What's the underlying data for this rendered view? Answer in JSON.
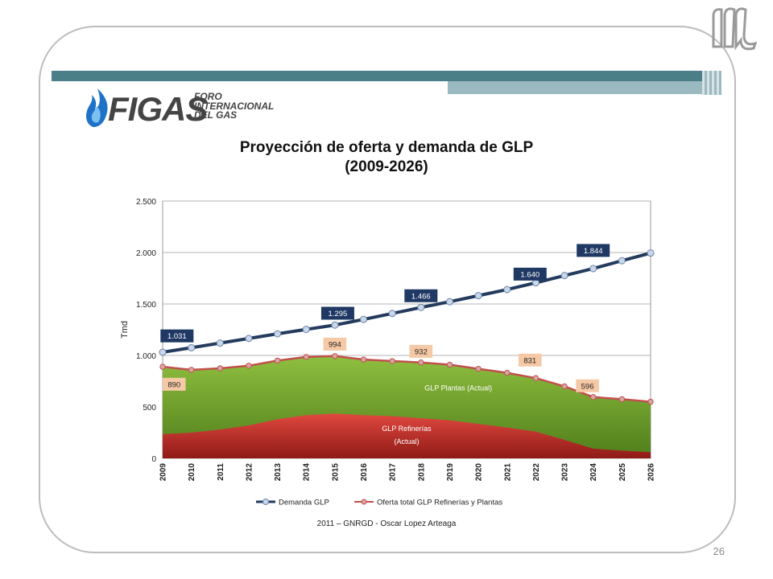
{
  "slide": {
    "footer": "2011 – GNRGD - Oscar Lopez Arteaga",
    "page_number": "26",
    "accent_dark": "#4a7f88",
    "accent_light": "#9ab9c0",
    "emblem_icon": "gothic-m-monogram-icon"
  },
  "logo": {
    "word": "FIGAS",
    "tagline_lines": [
      "FORO",
      "INTERNACIONAL",
      "DEL GAS"
    ],
    "icon": "blue-flame-icon"
  },
  "chart_data": {
    "type": "area",
    "title_lines": [
      "Proyección de oferta y demanda de GLP",
      "(2009-2026)"
    ],
    "xlabel": "",
    "ylabel": "Tmd",
    "ylim": [
      0,
      2500
    ],
    "yticks": [
      0,
      500,
      1000,
      1500,
      2000,
      2500
    ],
    "ytick_labels": [
      "0",
      "500",
      "1.000",
      "1.500",
      "2.000",
      "2.500"
    ],
    "grid": true,
    "x": [
      "2009",
      "2010",
      "2011",
      "2012",
      "2013",
      "2014",
      "2015",
      "2016",
      "2017",
      "2018",
      "2019",
      "2020",
      "2021",
      "2022",
      "2023",
      "2024",
      "2025",
      "2026"
    ],
    "series": [
      {
        "name": "Demanda GLP",
        "kind": "line",
        "color": "#243b5e",
        "values": [
          1031,
          1075,
          1120,
          1165,
          1210,
          1253,
          1295,
          1350,
          1408,
          1466,
          1522,
          1581,
          1640,
          1706,
          1776,
          1844,
          1920,
          1995
        ]
      },
      {
        "name": "Oferta total GLP Refinerías y Plantas",
        "kind": "line",
        "color": "#c0504d",
        "values": [
          890,
          860,
          875,
          900,
          950,
          985,
          994,
          960,
          945,
          932,
          910,
          870,
          831,
          780,
          700,
          596,
          575,
          550
        ]
      },
      {
        "name": "GLP Refinerías (Actual)",
        "kind": "area",
        "color": "#c0302a",
        "values": [
          235,
          250,
          280,
          320,
          380,
          420,
          435,
          420,
          410,
          390,
          370,
          335,
          300,
          260,
          180,
          95,
          75,
          60
        ]
      }
    ],
    "area_labels": [
      {
        "text": "GLP Plantas (Actual)",
        "x_index": 10.3,
        "y": 660
      },
      {
        "text": "GLP Refinerías",
        "x_index": 8.5,
        "y": 265
      },
      {
        "text": "(Actual)",
        "x_index": 8.5,
        "y": 140
      }
    ],
    "demand_labels": [
      {
        "text": "1.031",
        "x_index": 0.5,
        "y": 1190
      },
      {
        "text": "1.295",
        "x_index": 6.1,
        "y": 1410
      },
      {
        "text": "1.466",
        "x_index": 9.0,
        "y": 1580
      },
      {
        "text": "1.640",
        "x_index": 12.8,
        "y": 1790
      },
      {
        "text": "1.844",
        "x_index": 15.0,
        "y": 2020
      }
    ],
    "supply_labels": [
      {
        "text": "890",
        "x_index": 0.4,
        "y": 720
      },
      {
        "text": "994",
        "x_index": 6.0,
        "y": 1110
      },
      {
        "text": "932",
        "x_index": 9.0,
        "y": 1040
      },
      {
        "text": "831",
        "x_index": 12.8,
        "y": 955
      },
      {
        "text": "596",
        "x_index": 14.8,
        "y": 705
      }
    ],
    "legend": {
      "placement": "bottom",
      "items": [
        "Demanda GLP",
        "Oferta total GLP Refinerías y Plantas"
      ]
    },
    "colors": {
      "plants_area_top": "#8fbf3f",
      "plants_area_bottom": "#4f7d1b",
      "refineries_area_top": "#e0483f",
      "refineries_area_bottom": "#8f1a16",
      "demand_label_bg": "#1f3864",
      "supply_label_bg": "#f6c9a6",
      "demand_marker": "#c9d7ea",
      "supply_marker": "#d9a6a4"
    }
  }
}
